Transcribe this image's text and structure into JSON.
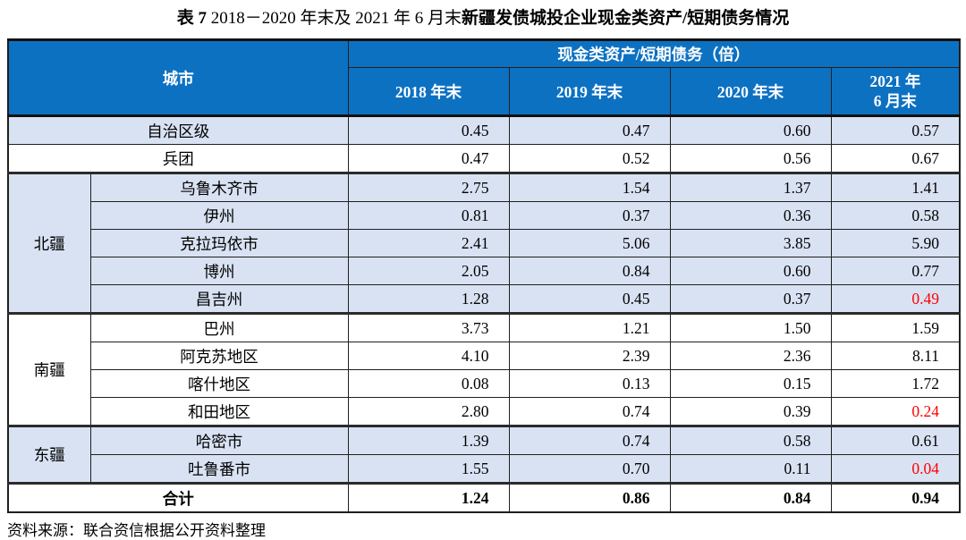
{
  "title": {
    "prefix": "表 7",
    "mid": "  2018－2020 年末及 2021 年 6 月末",
    "emph": "新疆发债城投企业现金类资产/短期债务情况"
  },
  "colors": {
    "header_bg": "#0D71C2",
    "header_text": "#FFFFFF",
    "alt_row_bg": "#D9E2F3",
    "highlight_value": "#FF0000",
    "border": "#1F1F1F"
  },
  "table": {
    "header": {
      "city_label": "城市",
      "metric_group_label": "现金类资产/短期债务（倍）",
      "periods": [
        "2018 年末",
        "2019 年末",
        "2020 年末"
      ],
      "period_2021_line1": "2021 年",
      "period_2021_line2": "6 月末"
    },
    "regions": {
      "north": "北疆",
      "south": "南疆",
      "east": "东疆"
    },
    "rows": [
      {
        "city": "自治区级",
        "values": [
          "0.45",
          "0.47",
          "0.60",
          "0.57"
        ]
      },
      {
        "city": "兵团",
        "values": [
          "0.47",
          "0.52",
          "0.56",
          "0.67"
        ]
      },
      {
        "region": "北疆",
        "city": "乌鲁木齐市",
        "values": [
          "2.75",
          "1.54",
          "1.37",
          "1.41"
        ]
      },
      {
        "city": "伊州",
        "values": [
          "0.81",
          "0.37",
          "0.36",
          "0.58"
        ]
      },
      {
        "city": "克拉玛依市",
        "values": [
          "2.41",
          "5.06",
          "3.85",
          "5.90"
        ]
      },
      {
        "city": "博州",
        "values": [
          "2.05",
          "0.84",
          "0.60",
          "0.77"
        ]
      },
      {
        "city": "昌吉州",
        "values": [
          "1.28",
          "0.45",
          "0.37",
          "0.49"
        ]
      },
      {
        "region": "南疆",
        "city": "巴州",
        "values": [
          "3.73",
          "1.21",
          "1.50",
          "1.59"
        ]
      },
      {
        "city": "阿克苏地区",
        "values": [
          "4.10",
          "2.39",
          "2.36",
          "8.11"
        ]
      },
      {
        "city": "喀什地区",
        "values": [
          "0.08",
          "0.13",
          "0.15",
          "1.72"
        ]
      },
      {
        "city": "和田地区",
        "values": [
          "2.80",
          "0.74",
          "0.39",
          "0.24"
        ]
      },
      {
        "region": "东疆",
        "city": "哈密市",
        "values": [
          "1.39",
          "0.74",
          "0.58",
          "0.61"
        ]
      },
      {
        "city": "吐鲁番市",
        "values": [
          "1.55",
          "0.70",
          "0.11",
          "0.04"
        ]
      }
    ],
    "total": {
      "label": "合计",
      "values": [
        "1.24",
        "0.86",
        "0.84",
        "0.94"
      ]
    }
  },
  "source_note": "资料来源：联合资信根据公开资料整理"
}
